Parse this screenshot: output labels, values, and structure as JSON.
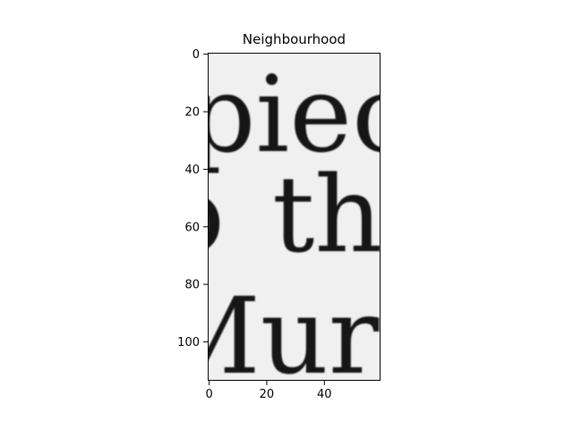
{
  "chart_data": {
    "type": "image",
    "title": "Neighbourhood",
    "xlabel": "",
    "ylabel": "",
    "xlim": [
      -0.5,
      59.5
    ],
    "ylim": [
      113.5,
      -0.5
    ],
    "y_axis_inverted": true,
    "xticks": [
      0,
      20,
      40
    ],
    "yticks": [
      0,
      20,
      40,
      60,
      80,
      100
    ],
    "grid": false,
    "colormap": "gray",
    "image_content": {
      "description_lines": [
        "piec",
        "the",
        "Murr"
      ],
      "background_color": "#f0f0f0",
      "ink_color": "#151515"
    }
  }
}
